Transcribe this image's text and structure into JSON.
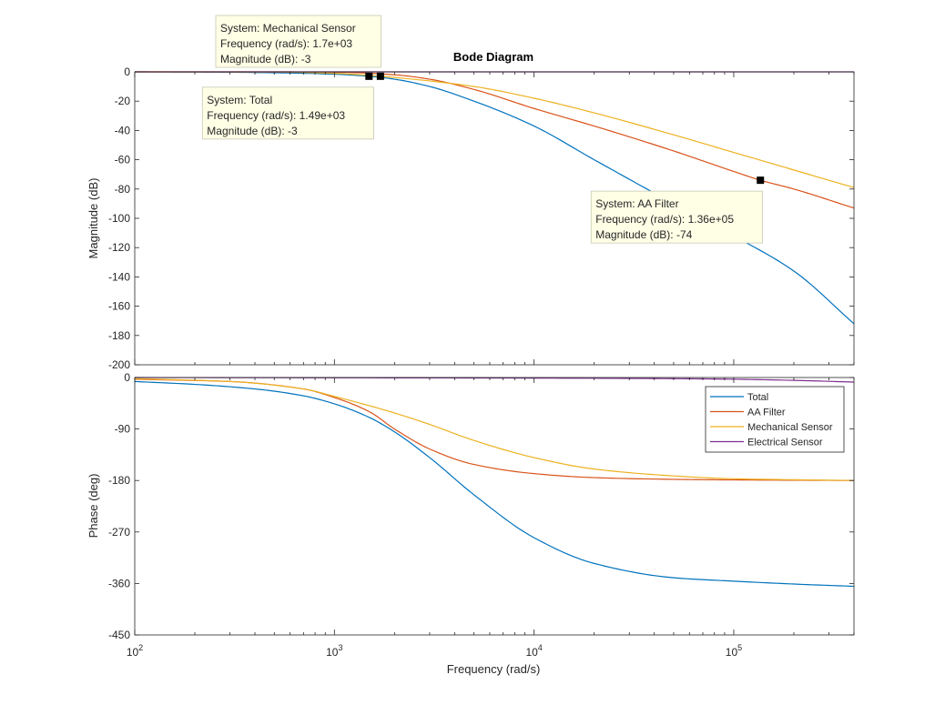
{
  "chart_data": [
    {
      "type": "line",
      "panel": "magnitude",
      "title": "Bode Diagram",
      "ylabel": "Magnitude (dB)",
      "xscale": "log",
      "xlim": [
        100,
        400000
      ],
      "ylim": [
        -200,
        0
      ],
      "yticks": [
        0,
        -20,
        -40,
        -60,
        -80,
        -100,
        -120,
        -140,
        -160,
        -180,
        -200
      ],
      "grid": false,
      "series": [
        {
          "name": "Total",
          "color": "#0072BD",
          "x": [
            100,
            200,
            500,
            1000,
            1490,
            2000,
            3000,
            5000,
            10000,
            20000,
            50000,
            100000,
            200000,
            400000
          ],
          "y": [
            0,
            -0.1,
            -0.6,
            -1.6,
            -3,
            -5,
            -10,
            -20,
            -37,
            -60,
            -90,
            -112,
            -136,
            -172
          ]
        },
        {
          "name": "AA Filter",
          "color": "#D95319",
          "x": [
            100,
            500,
            1000,
            2000,
            3000,
            5000,
            10000,
            20000,
            50000,
            100000,
            136000,
            200000,
            400000
          ],
          "y": [
            0,
            0,
            -0.2,
            -2,
            -5,
            -12,
            -25,
            -37,
            -54,
            -68,
            -74,
            -80,
            -93
          ]
        },
        {
          "name": "Mechanical Sensor",
          "color": "#EDB120",
          "x": [
            100,
            500,
            1000,
            1700,
            2000,
            5000,
            10000,
            20000,
            50000,
            100000,
            200000,
            400000
          ],
          "y": [
            0,
            -0.1,
            -1,
            -3,
            -3.8,
            -10,
            -18,
            -28,
            -43,
            -55,
            -67,
            -79
          ]
        },
        {
          "name": "Electrical Sensor",
          "color": "#7E2F8E",
          "x": [
            100,
            400000
          ],
          "y": [
            0,
            0
          ]
        }
      ],
      "annotations": [
        {
          "lines": [
            "System: Mechanical Sensor",
            "Frequency (rad/s): 1.7e+03",
            "Magnitude (dB): -3"
          ],
          "x": 1700,
          "y": -3,
          "anchor": "top-left"
        },
        {
          "lines": [
            "System: Total",
            "Frequency (rad/s): 1.49e+03",
            "Magnitude (dB): -3"
          ],
          "x": 1490,
          "y": -3,
          "anchor": "bottom-left"
        },
        {
          "lines": [
            "System: AA Filter",
            "Frequency (rad/s): 1.36e+05",
            "Magnitude (dB): -74"
          ],
          "x": 136000,
          "y": -74,
          "anchor": "bottom-left"
        }
      ]
    },
    {
      "type": "line",
      "panel": "phase",
      "ylabel": "Phase (deg)",
      "xlabel": "Frequency  (rad/s)",
      "xscale": "log",
      "xlim": [
        100,
        400000
      ],
      "ylim": [
        -450,
        0
      ],
      "yticks": [
        0,
        -90,
        -180,
        -270,
        -360,
        -450
      ],
      "xticks": [
        {
          "base": "10",
          "exp": "2"
        },
        {
          "base": "10",
          "exp": "3"
        },
        {
          "base": "10",
          "exp": "4"
        },
        {
          "base": "10",
          "exp": "5"
        }
      ],
      "grid": false,
      "legend": "top-right",
      "series": [
        {
          "name": "Total",
          "color": "#0072BD",
          "x": [
            100,
            200,
            400,
            700,
            1000,
            1500,
            2000,
            3000,
            5000,
            10000,
            20000,
            50000,
            100000,
            200000,
            400000
          ],
          "y": [
            -7,
            -12,
            -20,
            -32,
            -46,
            -70,
            -95,
            -140,
            -205,
            -280,
            -325,
            -350,
            -356,
            -361,
            -365
          ]
        },
        {
          "name": "AA Filter",
          "color": "#D95319",
          "x": [
            100,
            300,
            700,
            1000,
            1500,
            2000,
            3000,
            5000,
            10000,
            20000,
            50000,
            100000,
            400000
          ],
          "y": [
            -3,
            -7,
            -20,
            -35,
            -60,
            -90,
            -125,
            -152,
            -168,
            -175,
            -178,
            -179,
            -180
          ]
        },
        {
          "name": "Mechanical Sensor",
          "color": "#EDB120",
          "x": [
            100,
            300,
            700,
            1000,
            2000,
            3000,
            5000,
            10000,
            20000,
            50000,
            100000,
            400000
          ],
          "y": [
            -2,
            -7,
            -20,
            -33,
            -62,
            -82,
            -110,
            -140,
            -160,
            -172,
            -177,
            -180
          ]
        },
        {
          "name": "Electrical Sensor",
          "color": "#7E2F8E",
          "x": [
            100,
            10000,
            50000,
            100000,
            200000,
            400000
          ],
          "y": [
            0,
            -1,
            -2,
            -3,
            -5,
            -8
          ]
        }
      ]
    }
  ]
}
